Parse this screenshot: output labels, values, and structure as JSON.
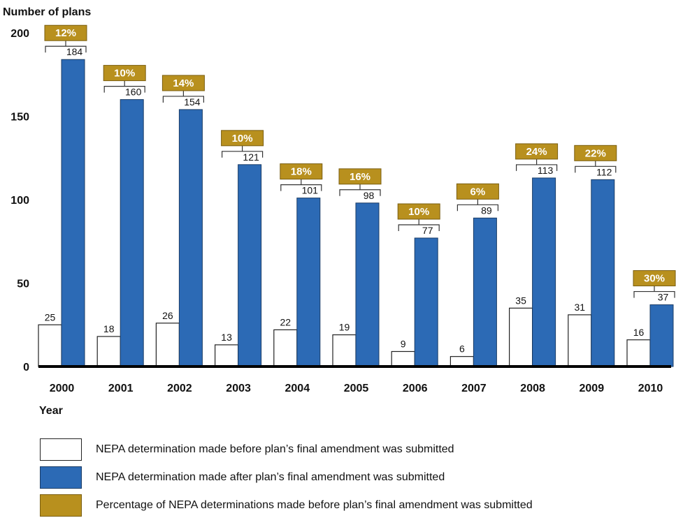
{
  "chart_data": {
    "type": "bar",
    "ylabel": "Number of plans",
    "xlabel": "Year",
    "ylim": [
      0,
      200
    ],
    "yticks": [
      0,
      50,
      100,
      150,
      200
    ],
    "categories": [
      "2000",
      "2001",
      "2002",
      "2003",
      "2004",
      "2005",
      "2006",
      "2007",
      "2008",
      "2009",
      "2010"
    ],
    "series": [
      {
        "name": "NEPA determination made before plan’s final amendment was submitted",
        "values": [
          25,
          18,
          26,
          13,
          22,
          19,
          9,
          6,
          35,
          31,
          16
        ]
      },
      {
        "name": "NEPA determination made after plan’s final amendment was submitted",
        "values": [
          184,
          160,
          154,
          121,
          101,
          98,
          77,
          89,
          113,
          112,
          37
        ]
      }
    ],
    "percentage_series": {
      "name": "Percentage of NEPA determinations made before plan’s final amendment was submitted",
      "labels": [
        "12%",
        "10%",
        "14%",
        "10%",
        "18%",
        "16%",
        "10%",
        "6%",
        "24%",
        "22%",
        "30%"
      ]
    },
    "colors": {
      "before": "#ffffff",
      "after": "#2c6ab5",
      "percentage": "#b8901e",
      "axis": "#000000"
    },
    "legend_position": "bottom-left"
  }
}
